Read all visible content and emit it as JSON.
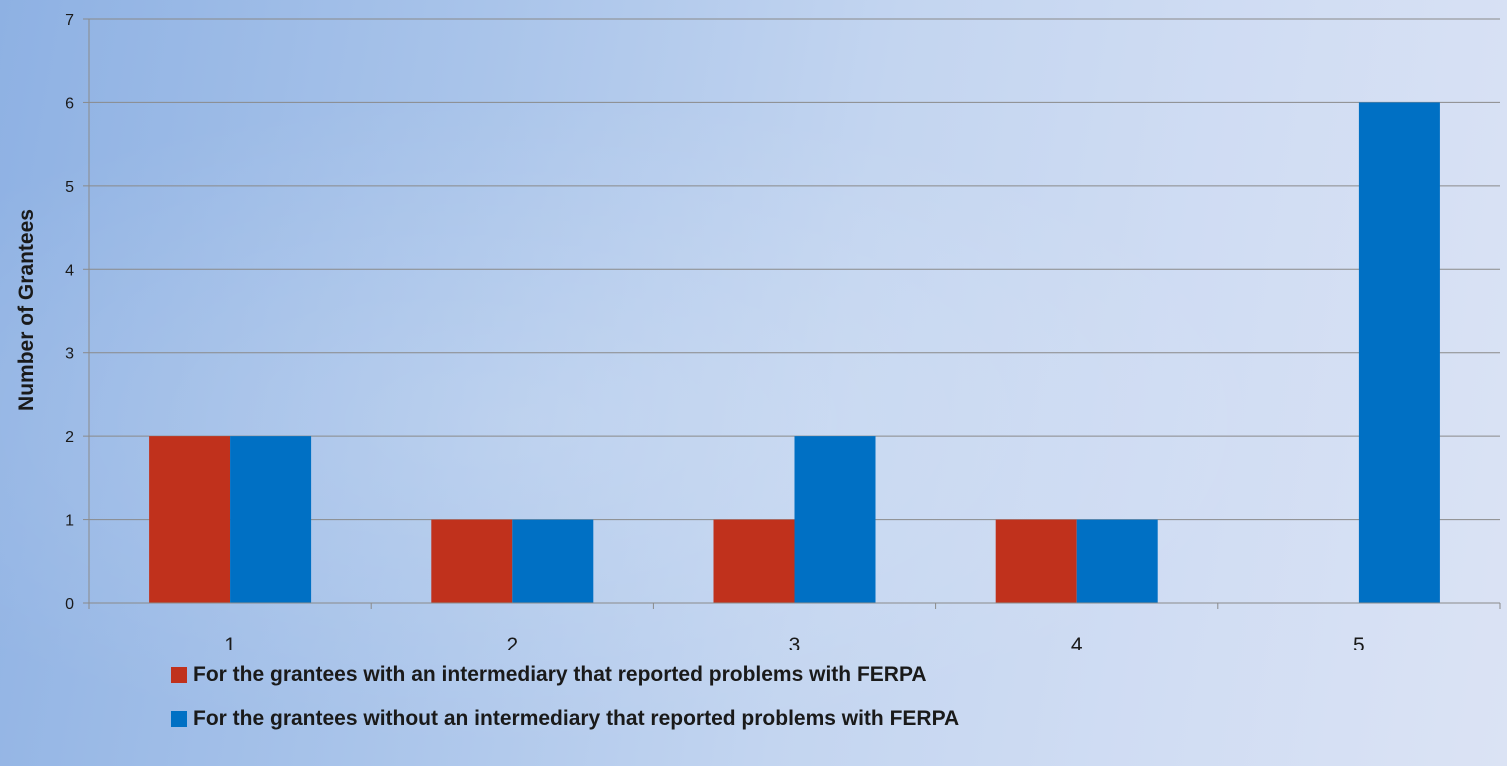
{
  "chart_data": {
    "type": "bar",
    "categories": [
      "1",
      "2",
      "3",
      "4",
      "5"
    ],
    "series": [
      {
        "name": "For the grantees with an intermediary that reported problems with FERPA",
        "values": [
          2,
          1,
          1,
          1,
          0
        ],
        "color": "#c0311c"
      },
      {
        "name": "For the grantees without an intermediary that reported problems with FERPA",
        "values": [
          2,
          1,
          2,
          1,
          6
        ],
        "color": "#0070c4"
      }
    ],
    "yticks": [
      "0",
      "1",
      "2",
      "3",
      "4",
      "5",
      "6",
      "7"
    ],
    "ylabel": "Number of Grantees",
    "xlabel": "",
    "ylim": [
      0,
      7
    ],
    "grid": true,
    "legend_position": "bottom"
  }
}
